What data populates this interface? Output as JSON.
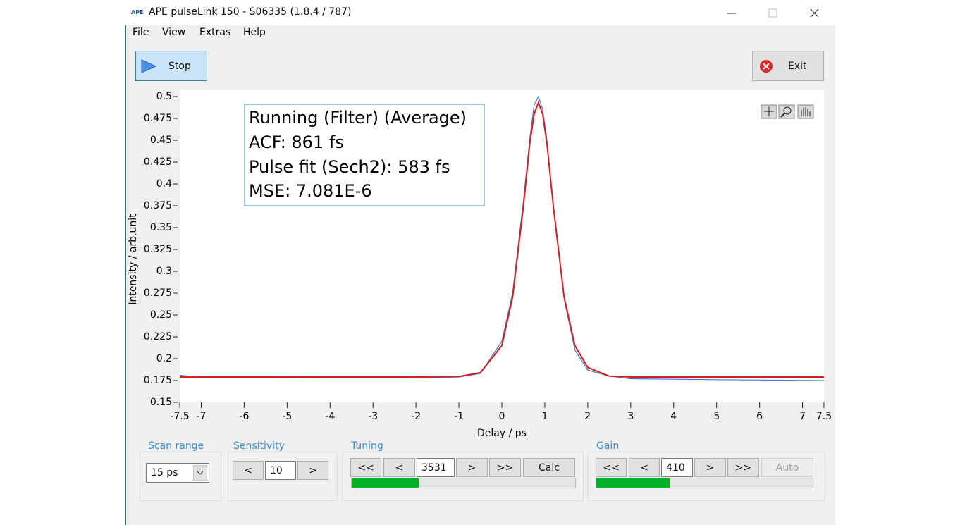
{
  "window": {
    "icon_text": "APE",
    "title": "APE pulseLink 150 - S06335 (1.8.4 / 787)"
  },
  "menu": [
    "File",
    "View",
    "Extras",
    "Help"
  ],
  "toolbar": {
    "stop": "Stop",
    "exit": "Exit"
  },
  "chart_data": {
    "type": "line",
    "xlabel": "Delay / ps",
    "ylabel": "Intensity / arb.unit",
    "annotations": [
      "Running (Filter) (Average)",
      "ACF: 861 fs",
      "Pulse fit (Sech2): 583 fs",
      "MSE: 7.081E-6"
    ],
    "x": [
      -7.5,
      -7,
      -6,
      -4,
      -2,
      -1,
      -0.5,
      0,
      0.25,
      0.5,
      0.65,
      0.75,
      0.85,
      0.95,
      1.05,
      1.2,
      1.45,
      1.7,
      2,
      2.5,
      3,
      5,
      7.5
    ],
    "series": [
      {
        "color": "#3b7fd4",
        "values": [
          0.181,
          0.179,
          0.179,
          0.178,
          0.178,
          0.179,
          0.183,
          0.22,
          0.275,
          0.38,
          0.452,
          0.49,
          0.5,
          0.485,
          0.45,
          0.372,
          0.268,
          0.21,
          0.187,
          0.18,
          0.177,
          0.176,
          0.175
        ]
      },
      {
        "color": "#d42020",
        "values": [
          0.179,
          0.179,
          0.179,
          0.179,
          0.179,
          0.1796,
          0.184,
          0.215,
          0.27,
          0.374,
          0.446,
          0.48,
          0.493,
          0.48,
          0.446,
          0.374,
          0.27,
          0.215,
          0.19,
          0.18,
          0.179,
          0.179,
          0.179
        ]
      }
    ],
    "xlim": [
      -7.5,
      7.5
    ],
    "xticks": [
      -7.5,
      -7,
      -6,
      -5,
      -4,
      -3,
      -2,
      -1,
      0,
      1,
      2,
      3,
      4,
      5,
      6,
      7,
      7.5
    ],
    "ylim": [
      0.15,
      0.5
    ],
    "yticks": [
      0.15,
      0.175,
      0.2,
      0.225,
      0.25,
      0.275,
      0.3,
      0.325,
      0.35,
      0.375,
      0.4,
      0.425,
      0.45,
      0.475,
      0.5
    ]
  },
  "controls": {
    "scan_range": {
      "label": "Scan range",
      "value": "15 ps"
    },
    "sensitivity": {
      "label": "Sensitivity",
      "down": "<",
      "value": "10",
      "up": ">"
    },
    "tuning": {
      "label": "Tuning",
      "fast_down": "<<",
      "down": "<",
      "value": "3531",
      "up": ">",
      "fast_up": ">>",
      "action": "Calc",
      "progress": 30
    },
    "gain": {
      "label": "Gain",
      "fast_down": "<<",
      "down": "<",
      "value": "410",
      "up": ">",
      "fast_up": ">>",
      "action": "Auto",
      "progress": 34
    }
  }
}
